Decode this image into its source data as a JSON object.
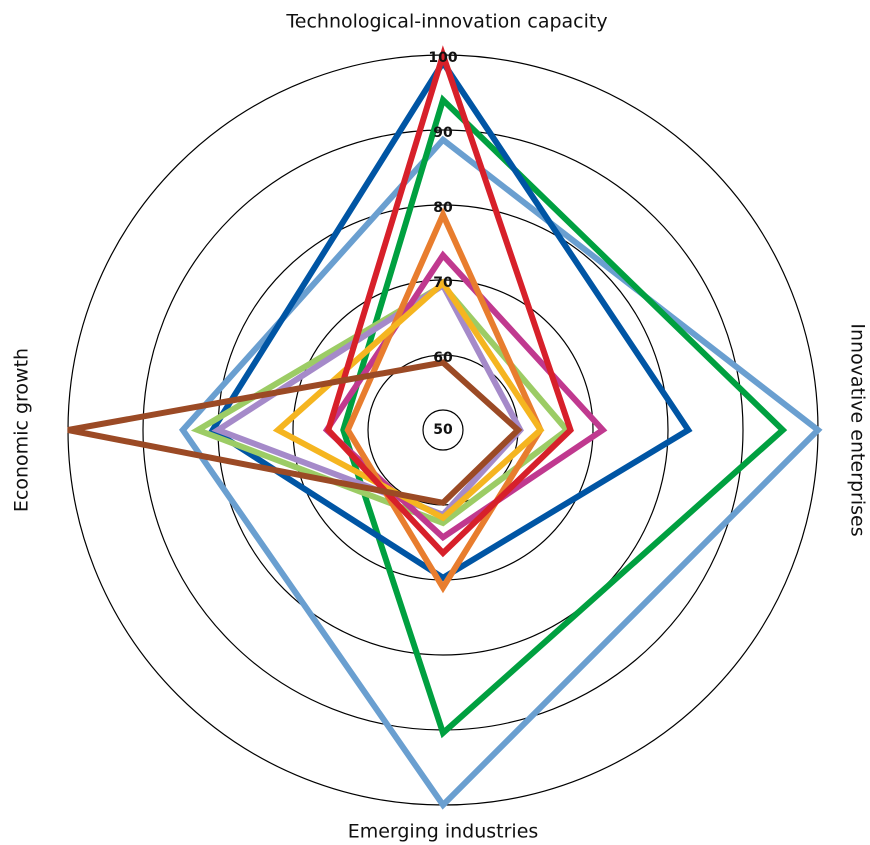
{
  "chart_data": {
    "type": "radar",
    "categories": [
      "Technological-innovation capacity",
      "Innovative enterprises",
      "Emerging industries",
      "Economic growth"
    ],
    "ylim": [
      50,
      100
    ],
    "yticks": [
      50,
      60,
      70,
      80,
      90,
      100
    ],
    "series": [
      {
        "color": "#6a9fd0",
        "values": [
          88.7,
          100,
          100,
          84.7
        ]
      },
      {
        "color": "#00a040",
        "values": [
          94,
          95.3,
          90.4,
          63.3
        ]
      },
      {
        "color": "#0055a4",
        "values": [
          99,
          82.7,
          69.7,
          80.7
        ]
      },
      {
        "color": "#9ccc65",
        "values": [
          69.3,
          66.5,
          62.4,
          82.7
        ]
      },
      {
        "color": "#a58ac9",
        "values": [
          69.3,
          60.3,
          61.3,
          80
        ]
      },
      {
        "color": "#c0398f",
        "values": [
          73.3,
          71.3,
          64.3,
          65.5
        ]
      },
      {
        "color": "#e87d2e",
        "values": [
          78.7,
          63,
          71,
          62.7
        ]
      },
      {
        "color": "#f5b520",
        "values": [
          69.6,
          63,
          61.7,
          72
        ]
      },
      {
        "color": "#d7202a",
        "values": [
          100,
          67,
          66.4,
          65.3
        ]
      },
      {
        "color": "#9b4a25",
        "values": [
          59,
          60,
          59.7,
          100
        ]
      }
    ]
  }
}
